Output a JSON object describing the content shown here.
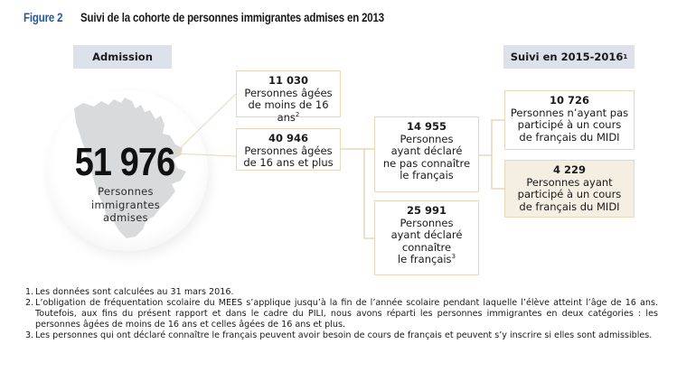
{
  "figure": {
    "label": "Figure 2",
    "title": "Suivi de la cohorte de personnes immigrantes admises en 2013"
  },
  "headers": {
    "admission": "Admission",
    "suivi": "Suivi en 2015-2016",
    "suivi_note": "1"
  },
  "total": {
    "value": "51 976",
    "caption_lines": [
      "Personnes",
      "immigrantes",
      "admises"
    ]
  },
  "nodes": {
    "under16": {
      "value": "11 030",
      "lines": [
        "Personnes âgées",
        "de moins de 16 ans"
      ],
      "note": "2"
    },
    "over16": {
      "value": "40 946",
      "lines": [
        "Personnes âgées",
        "de 16 ans et plus"
      ]
    },
    "no_french": {
      "value": "14 955",
      "lines": [
        "Personnes",
        "ayant déclaré",
        "ne pas connaître",
        "le français"
      ]
    },
    "french": {
      "value": "25 991",
      "lines": [
        "Personnes",
        "ayant déclaré",
        "connaître",
        "le français"
      ],
      "note": "3"
    },
    "no_course": {
      "value": "10 726",
      "lines": [
        "Personnes n’ayant pas",
        "participé à un cours",
        "de français du MIDI"
      ]
    },
    "course": {
      "value": "4 229",
      "lines": [
        "Personnes ayant",
        "participé à un cours",
        "de français du MIDI"
      ]
    }
  },
  "footnotes": [
    {
      "n": "1.",
      "text": "Les données sont calculées au 31 mars 2016."
    },
    {
      "n": "2.",
      "text": "L’obligation de fréquentation scolaire du MEES s’applique jusqu’à la fin de l’année scolaire pendant laquelle l’élève atteint l’âge de 16 ans. Toutefois, aux fins du présent rapport et dans le cadre du PILI, nous avons réparti les personnes immigrantes en deux catégories : les personnes âgées de moins de 16 ans et celles âgées de 16 ans et plus."
    },
    {
      "n": "3.",
      "text": "Les personnes qui ont déclaré connaître le français peuvent avoir besoin de cours de français et peuvent s’y inscrire si elles sont admissibles."
    }
  ],
  "colors": {
    "figure_label": "#1f5a9a",
    "header_bg": "#dde1ec",
    "connector": "#e8d7b8",
    "highlight_bg": "#f5efe3",
    "map": "#d9dadc"
  }
}
